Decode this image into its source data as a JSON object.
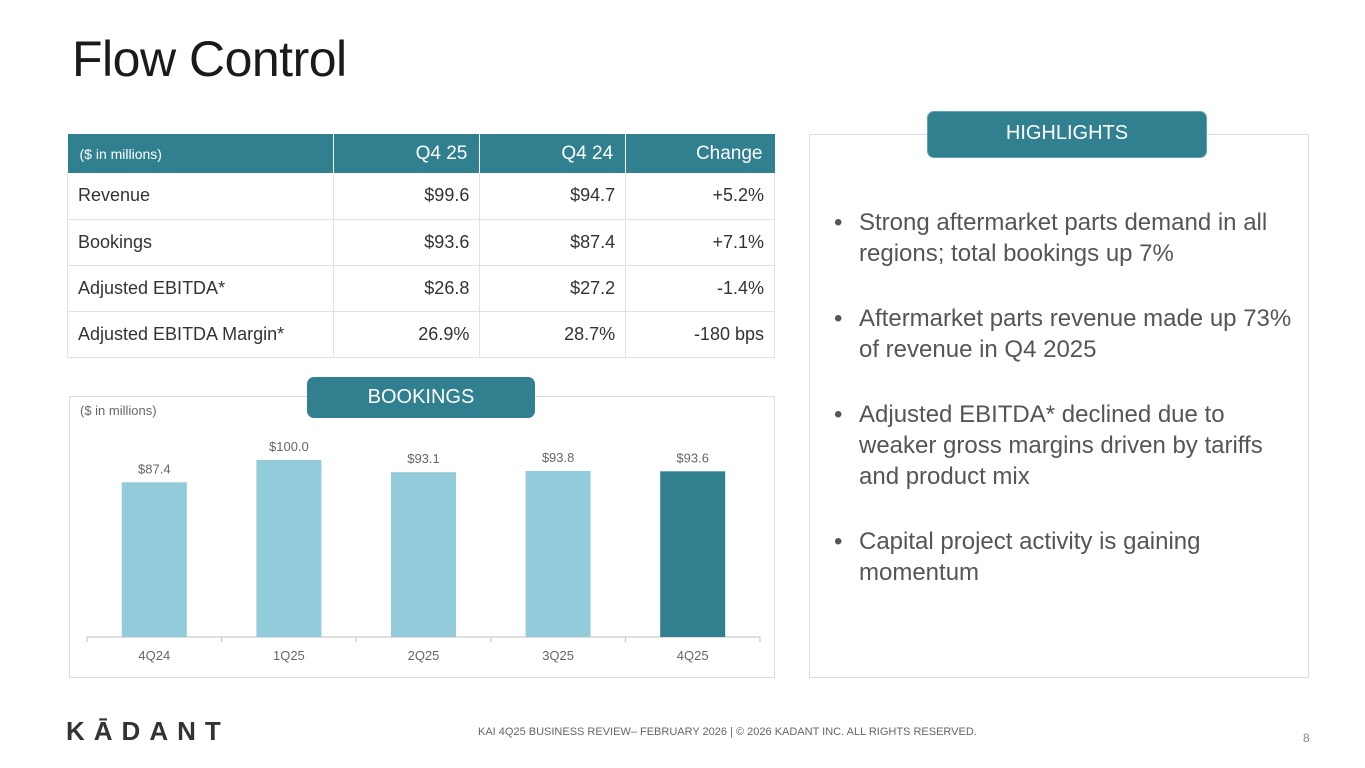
{
  "page": {
    "title": "Flow Control"
  },
  "table": {
    "headers": [
      "($ in millions)",
      "Q4 25",
      "Q4 24",
      "Change"
    ],
    "rows": [
      [
        "Revenue",
        "$99.6",
        "$94.7",
        "+5.2%"
      ],
      [
        "Bookings",
        "$93.6",
        "$87.4",
        "+7.1%"
      ],
      [
        "Adjusted EBITDA*",
        "$26.8",
        "$27.2",
        "-1.4%"
      ],
      [
        "Adjusted EBITDA Margin*",
        "26.9%",
        "28.7%",
        "-180 bps"
      ]
    ]
  },
  "bookings": {
    "label": "BOOKINGS",
    "unit_note": "($ in millions)"
  },
  "chart_data": {
    "type": "bar",
    "title": "BOOKINGS",
    "ylabel": "($ in millions)",
    "categories": [
      "4Q24",
      "1Q25",
      "2Q25",
      "3Q25",
      "4Q25"
    ],
    "values": [
      87.4,
      100.0,
      93.1,
      93.8,
      93.6
    ],
    "data_labels": [
      "$87.4",
      "$100.0",
      "$93.1",
      "$93.8",
      "$93.6"
    ],
    "ylim": [
      0,
      100
    ],
    "grid": false,
    "colors": {
      "default": "#92cbd9",
      "highlight": "#31808f"
    },
    "highlight_index": 4
  },
  "highlights": {
    "label": "HIGHLIGHTS",
    "bullet": "•",
    "items": [
      "Strong aftermarket parts demand in all regions; total bookings up 7%",
      "Aftermarket parts revenue made up 73% of revenue in Q4 2025",
      "Adjusted EBITDA* declined due to weaker gross margins driven by tariffs and product mix",
      "Capital project activity is gaining momentum"
    ]
  },
  "footer": {
    "logo": "KĀDANT",
    "text": "KAI 4Q25 BUSINESS REVIEW– FEBRUARY 2026  |  © 2026 KADANT INC. ALL RIGHTS RESERVED.",
    "page_number": "8"
  },
  "colors": {
    "accent": "#31808f",
    "bar_light": "#92cbd9"
  }
}
